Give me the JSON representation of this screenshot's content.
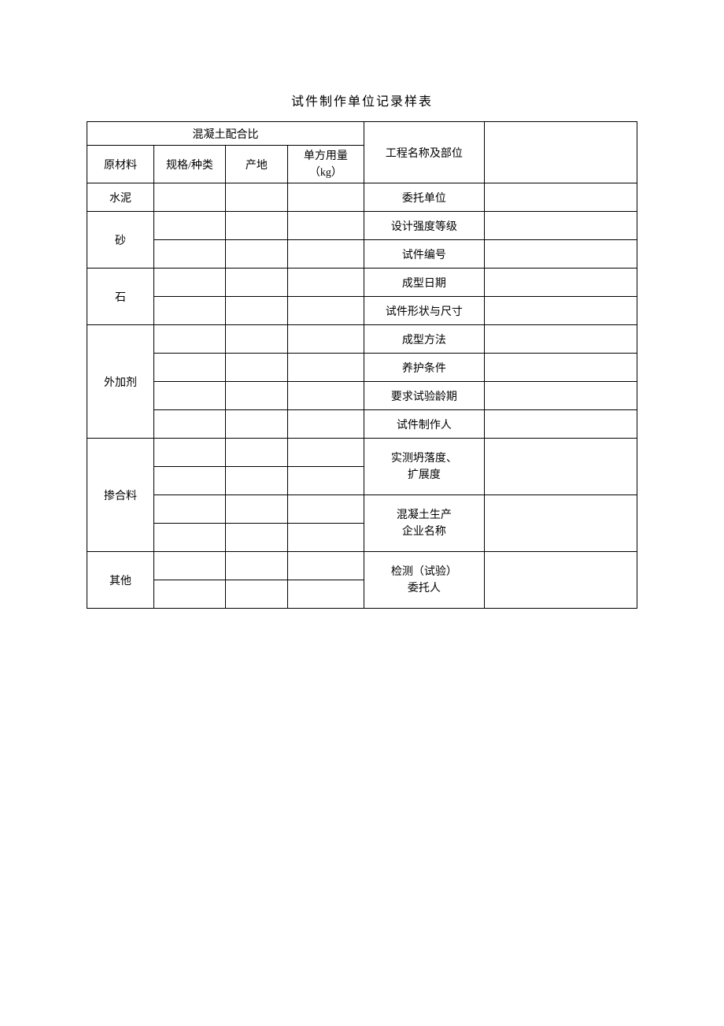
{
  "title": "试件制作单位记录样表",
  "table": {
    "mixHeader": "混凝土配合比",
    "columns": {
      "material": "原材料",
      "spec": "规格/种类",
      "origin": "产地",
      "usage_line1": "单方用量",
      "usage_line2": "（kg）"
    },
    "materials": {
      "cement": "水泥",
      "sand": "砂",
      "stone": "石",
      "additive": "外加剂",
      "admixture": "掺合料",
      "other": "其他"
    },
    "labels": {
      "project": "工程名称及部位",
      "client": "委托单位",
      "designGrade": "设计强度等级",
      "specimenNo": "试件编号",
      "moldDate": "成型日期",
      "shapeSize": "试件形状与尺寸",
      "moldMethod": "成型方法",
      "curing": "养护条件",
      "testAge": "要求试验龄期",
      "maker": "试件制作人",
      "slump_line1": "实测坍落度、",
      "slump_line2": "扩展度",
      "producer_line1": "混凝土生产",
      "producer_line2": "企业名称",
      "inspector_line1": "检测（试验）",
      "inspector_line2": "委托人"
    },
    "values": {
      "project": "",
      "client": "",
      "designGrade": "",
      "specimenNo": "",
      "moldDate": "",
      "shapeSize": "",
      "moldMethod": "",
      "curing": "",
      "testAge": "",
      "maker": "",
      "slump": "",
      "producer": "",
      "inspector": ""
    },
    "cells": {
      "cement": {
        "spec": "",
        "origin": "",
        "usage": ""
      },
      "sand1": {
        "spec": "",
        "origin": "",
        "usage": ""
      },
      "sand2": {
        "spec": "",
        "origin": "",
        "usage": ""
      },
      "stone1": {
        "spec": "",
        "origin": "",
        "usage": ""
      },
      "stone2": {
        "spec": "",
        "origin": "",
        "usage": ""
      },
      "additive1": {
        "spec": "",
        "origin": "",
        "usage": ""
      },
      "additive2": {
        "spec": "",
        "origin": "",
        "usage": ""
      },
      "additive3": {
        "spec": "",
        "origin": "",
        "usage": ""
      },
      "additive4": {
        "spec": "",
        "origin": "",
        "usage": ""
      },
      "admixture1": {
        "spec": "",
        "origin": "",
        "usage": ""
      },
      "admixture2": {
        "spec": "",
        "origin": "",
        "usage": ""
      },
      "admixture3": {
        "spec": "",
        "origin": "",
        "usage": ""
      },
      "admixture4": {
        "spec": "",
        "origin": "",
        "usage": ""
      },
      "other1": {
        "spec": "",
        "origin": "",
        "usage": ""
      },
      "other2": {
        "spec": "",
        "origin": "",
        "usage": ""
      }
    }
  }
}
